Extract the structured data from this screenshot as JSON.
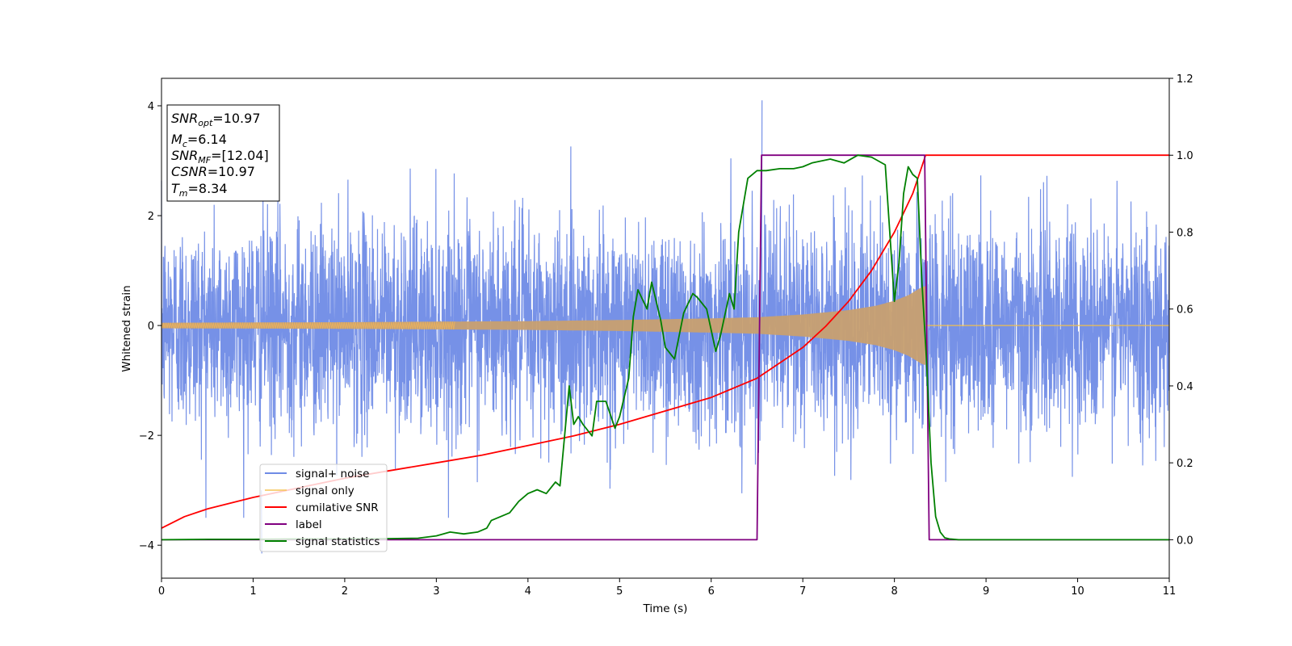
{
  "chart_data": {
    "type": "line",
    "xlabel": "Time (s)",
    "ylabel_left": "Whitened strain",
    "xlim": [
      0,
      11
    ],
    "ylim_left": [
      -4.6,
      4.5
    ],
    "ylim_right": [
      -0.1,
      1.2
    ],
    "x_ticks": [
      0,
      1,
      2,
      3,
      4,
      5,
      6,
      7,
      8,
      9,
      10,
      11
    ],
    "y_left_ticks": [
      -4,
      -2,
      0,
      2,
      4
    ],
    "y_left_tick_labels": [
      "−4",
      "−2",
      "0",
      "2",
      "4"
    ],
    "y_right_ticks": [
      0.0,
      0.2,
      0.4,
      0.6,
      0.8,
      1.0,
      1.2
    ],
    "y_right_tick_labels": [
      "0.0",
      "0.2",
      "0.4",
      "0.6",
      "0.8",
      "1.0",
      "1.2"
    ],
    "grid": false,
    "legend_position": "lower-left",
    "info_box": {
      "snr_opt": {
        "base": "SNR",
        "sub": "opt",
        "value": "=10.97"
      },
      "mc": {
        "base": "M",
        "sub": "c",
        "value": "=6.14"
      },
      "snr_mf": {
        "base": "SNR",
        "sub": "MF",
        "value": "=[12.04]"
      },
      "csnr": {
        "base": "CSNR",
        "value": "=10.97"
      },
      "tm": {
        "base": "T",
        "sub": "m",
        "value": "=8.34"
      }
    },
    "series": [
      {
        "name": "signal+ noise",
        "axis": "left",
        "color": "#6f8be6",
        "description_values": "noise with amplitude ~±2, spikes up to ±3.5, peak 4.1 near t=6.55, min -4.1 near t=1.1"
      },
      {
        "name": "signal only",
        "axis": "left",
        "color": "#f5c04a",
        "envelope": {
          "t": [
            0,
            1,
            2,
            3,
            4,
            5,
            6,
            6.5,
            7,
            7.5,
            7.8,
            8.0,
            8.15,
            8.3,
            8.34
          ],
          "amplitude": [
            0.05,
            0.055,
            0.06,
            0.07,
            0.08,
            0.1,
            0.13,
            0.15,
            0.2,
            0.28,
            0.36,
            0.45,
            0.55,
            0.7,
            0.72
          ]
        },
        "end_time": 8.34
      },
      {
        "name": "cumilative SNR",
        "axis": "right",
        "color": "#ff0000",
        "x": [
          0,
          0.25,
          0.5,
          1,
          1.5,
          2,
          2.5,
          3,
          3.5,
          4,
          4.5,
          5,
          5.5,
          6,
          6.5,
          7,
          7.25,
          7.5,
          7.75,
          8,
          8.1,
          8.2,
          8.27,
          8.32,
          8.34,
          8.36,
          9,
          10,
          11
        ],
        "y": [
          0.03,
          0.06,
          0.08,
          0.11,
          0.135,
          0.16,
          0.18,
          0.2,
          0.22,
          0.245,
          0.27,
          0.3,
          0.335,
          0.37,
          0.42,
          0.5,
          0.555,
          0.62,
          0.7,
          0.8,
          0.85,
          0.9,
          0.95,
          0.985,
          1.0,
          1.0,
          1.0,
          1.0,
          1.0
        ]
      },
      {
        "name": "label",
        "axis": "right",
        "color": "#800080",
        "x": [
          0,
          6.5,
          6.55,
          8.33,
          8.38,
          11
        ],
        "y": [
          0,
          0,
          1,
          1,
          0,
          0
        ]
      },
      {
        "name": "signal statistics",
        "axis": "right",
        "color": "#008000",
        "x": [
          0,
          0.5,
          1,
          1.5,
          2,
          2.5,
          2.8,
          3.0,
          3.15,
          3.3,
          3.45,
          3.55,
          3.6,
          3.7,
          3.8,
          3.9,
          4.0,
          4.1,
          4.2,
          4.3,
          4.35,
          4.45,
          4.5,
          4.55,
          4.6,
          4.7,
          4.75,
          4.85,
          4.95,
          5.0,
          5.1,
          5.15,
          5.2,
          5.3,
          5.35,
          5.45,
          5.5,
          5.6,
          5.7,
          5.8,
          5.85,
          5.95,
          6.05,
          6.1,
          6.2,
          6.25,
          6.3,
          6.4,
          6.5,
          6.6,
          6.75,
          6.9,
          7.0,
          7.1,
          7.2,
          7.3,
          7.45,
          7.6,
          7.75,
          7.9,
          8.0,
          8.05,
          8.1,
          8.15,
          8.2,
          8.25,
          8.3,
          8.35,
          8.4,
          8.45,
          8.5,
          8.55,
          8.6,
          8.7,
          9.0,
          10,
          11
        ],
        "y": [
          0.0,
          0.001,
          0.001,
          0.002,
          0.002,
          0.003,
          0.004,
          0.01,
          0.02,
          0.015,
          0.02,
          0.03,
          0.05,
          0.06,
          0.07,
          0.1,
          0.12,
          0.13,
          0.12,
          0.15,
          0.14,
          0.4,
          0.3,
          0.32,
          0.3,
          0.27,
          0.36,
          0.36,
          0.29,
          0.32,
          0.42,
          0.58,
          0.65,
          0.6,
          0.67,
          0.57,
          0.5,
          0.47,
          0.59,
          0.64,
          0.63,
          0.6,
          0.49,
          0.53,
          0.64,
          0.6,
          0.8,
          0.94,
          0.96,
          0.96,
          0.965,
          0.965,
          0.97,
          0.98,
          0.985,
          0.99,
          0.98,
          1.0,
          0.995,
          0.975,
          0.62,
          0.72,
          0.9,
          0.97,
          0.95,
          0.94,
          0.67,
          0.47,
          0.2,
          0.06,
          0.02,
          0.005,
          0.002,
          0.0,
          0.0,
          0.0,
          0.0
        ]
      }
    ]
  }
}
